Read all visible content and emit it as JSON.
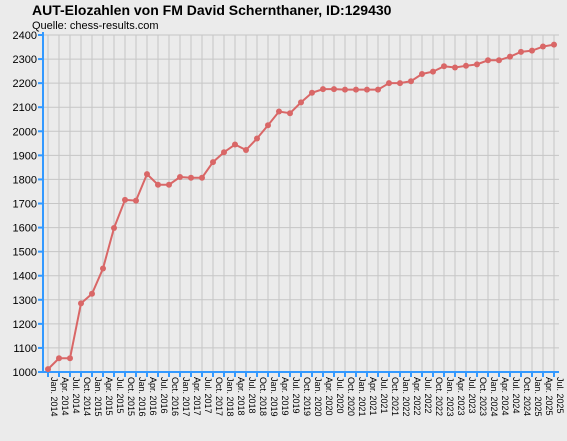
{
  "chart_data": {
    "type": "line",
    "title": "AUT-Elozahlen von FM David Schernthaner, ID:129430",
    "subtitle": "Quelle: chess-results.com",
    "xlabel": "",
    "ylabel": "",
    "ylim": [
      1000,
      2400
    ],
    "yticks": [
      1000,
      1100,
      1200,
      1300,
      1400,
      1500,
      1600,
      1700,
      1800,
      1900,
      2000,
      2100,
      2200,
      2300,
      2400
    ],
    "grid": true,
    "legend": "none",
    "colors": {
      "line": "#d96767",
      "axis": "#3399ff",
      "grid": "#c6c6c6",
      "background": "#ebebeb"
    },
    "categories": [
      "Jan. 2014",
      "Apr. 2014",
      "Jul. 2014",
      "Oct. 2014",
      "Jan. 2015",
      "Apr. 2015",
      "Jul. 2015",
      "Oct. 2015",
      "Jan. 2016",
      "Apr. 2016",
      "Jul. 2016",
      "Oct. 2016",
      "Jan. 2017",
      "Apr. 2017",
      "Jul. 2017",
      "Oct. 2017",
      "Jan. 2018",
      "Apr. 2018",
      "Jul. 2018",
      "Oct. 2018",
      "Jan. 2019",
      "Apr. 2019",
      "Jul. 2019",
      "Oct. 2019",
      "Jan. 2020",
      "Apr. 2020",
      "Jul. 2020",
      "Oct. 2020",
      "Jan. 2021",
      "Apr. 2021",
      "Jul. 2021",
      "Oct. 2021",
      "Jan. 2022",
      "Apr. 2022",
      "Jul. 2022",
      "Oct. 2022",
      "Jan. 2023",
      "Apr. 2023",
      "Jul. 2023",
      "Oct. 2023",
      "Jan. 2024",
      "Apr. 2024",
      "Jul. 2024",
      "Oct. 2024",
      "Jan. 2025",
      "Apr. 2025",
      "Jul. 2025"
    ],
    "series": [
      {
        "values": [
          1012,
          1057,
          1057,
          1285,
          1325,
          1430,
          1598,
          1715,
          1712,
          1822,
          1778,
          1778,
          1810,
          1807,
          1807,
          1872,
          1913,
          1945,
          1922,
          1970,
          2025,
          2082,
          2075,
          2120,
          2160,
          2175,
          2175,
          2173,
          2173,
          2173,
          2173,
          2200,
          2200,
          2208,
          2238,
          2248,
          2270,
          2265,
          2272,
          2278,
          2295,
          2295,
          2310,
          2330,
          2335,
          2352,
          2360
        ]
      }
    ]
  }
}
